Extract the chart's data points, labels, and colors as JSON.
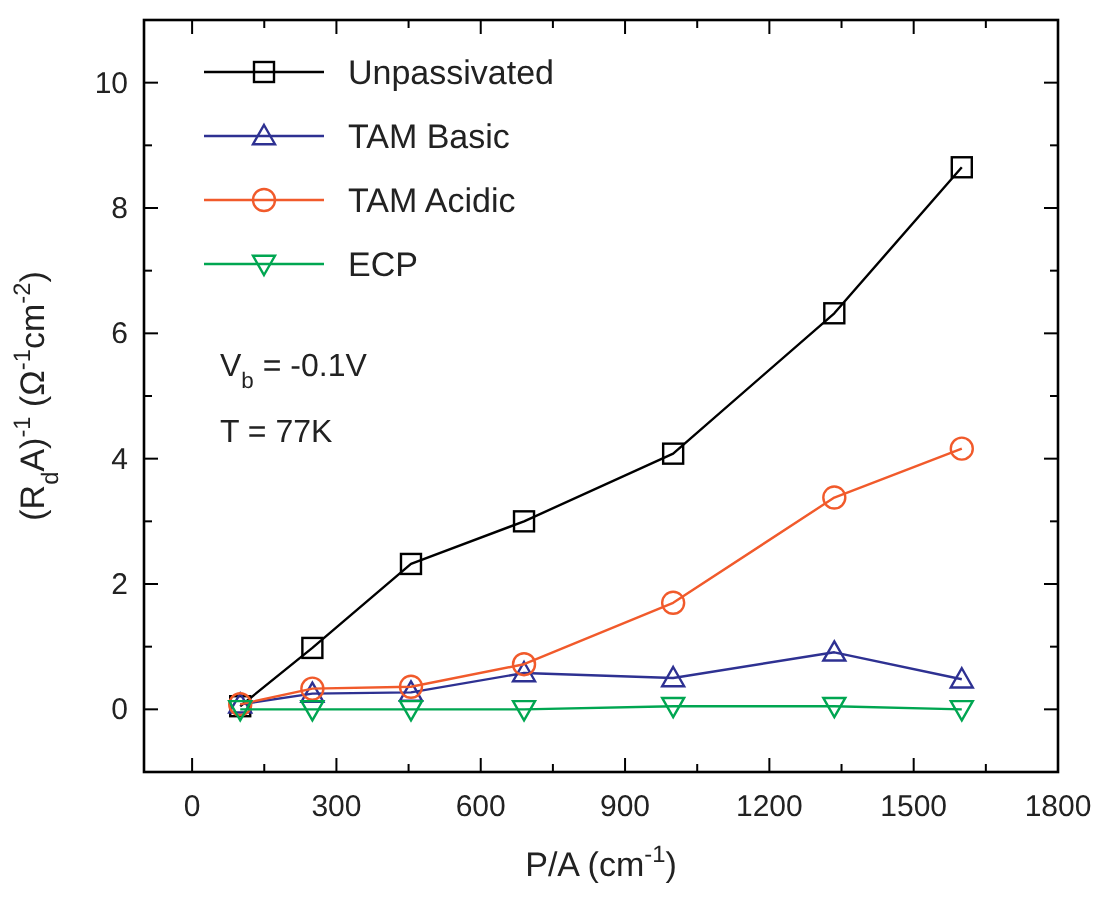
{
  "chart_data": {
    "type": "line",
    "xlabel": "P/A (cm$^{-1}$)",
    "ylabel": "(R$_{d}$A)$^{-1}$ (Ω$^{-1}$cm$^{-2}$)",
    "x": [
      100,
      250,
      455,
      690,
      1000,
      1335,
      1600
    ],
    "series": [
      {
        "name": "Unpassivated",
        "color": "#000000",
        "marker": "square",
        "values": [
          0.05,
          0.98,
          2.32,
          3.0,
          4.08,
          6.32,
          8.65
        ]
      },
      {
        "name": "TAM Basic",
        "color": "#2e3192",
        "marker": "triangle",
        "values": [
          0.08,
          0.25,
          0.27,
          0.58,
          0.5,
          0.91,
          0.48
        ]
      },
      {
        "name": "TAM Acidic",
        "color": "#f15a2b",
        "marker": "circle",
        "values": [
          0.08,
          0.33,
          0.36,
          0.72,
          1.7,
          3.38,
          4.16
        ]
      },
      {
        "name": "ECP",
        "color": "#00a651",
        "marker": "triangle-down",
        "values": [
          0,
          0,
          0,
          0,
          0.05,
          0.05,
          0
        ]
      }
    ],
    "xlim": [
      -100,
      1800
    ],
    "xticks": [
      0,
      {
        "value": 150,
        "label": null
      },
      300,
      {
        "value": 450,
        "label": null
      },
      600,
      {
        "value": 750,
        "label": null
      },
      900,
      {
        "value": 1050,
        "label": null
      },
      1200,
      {
        "value": 1350,
        "label": null
      },
      1500,
      {
        "value": 1650,
        "label": null
      },
      1800
    ],
    "ylim": [
      -1,
      11
    ],
    "yticks": [
      0,
      {
        "value": 1,
        "label": null
      },
      2,
      {
        "value": 3,
        "label": null
      },
      4,
      {
        "value": 5,
        "label": null
      },
      6,
      {
        "value": 7,
        "label": null
      },
      8,
      {
        "value": 9,
        "label": null
      },
      10
    ],
    "annotations": [
      "V$_{b}$ = -0.1V",
      "T = 77K"
    ],
    "legend": "top left",
    "grid": false
  }
}
